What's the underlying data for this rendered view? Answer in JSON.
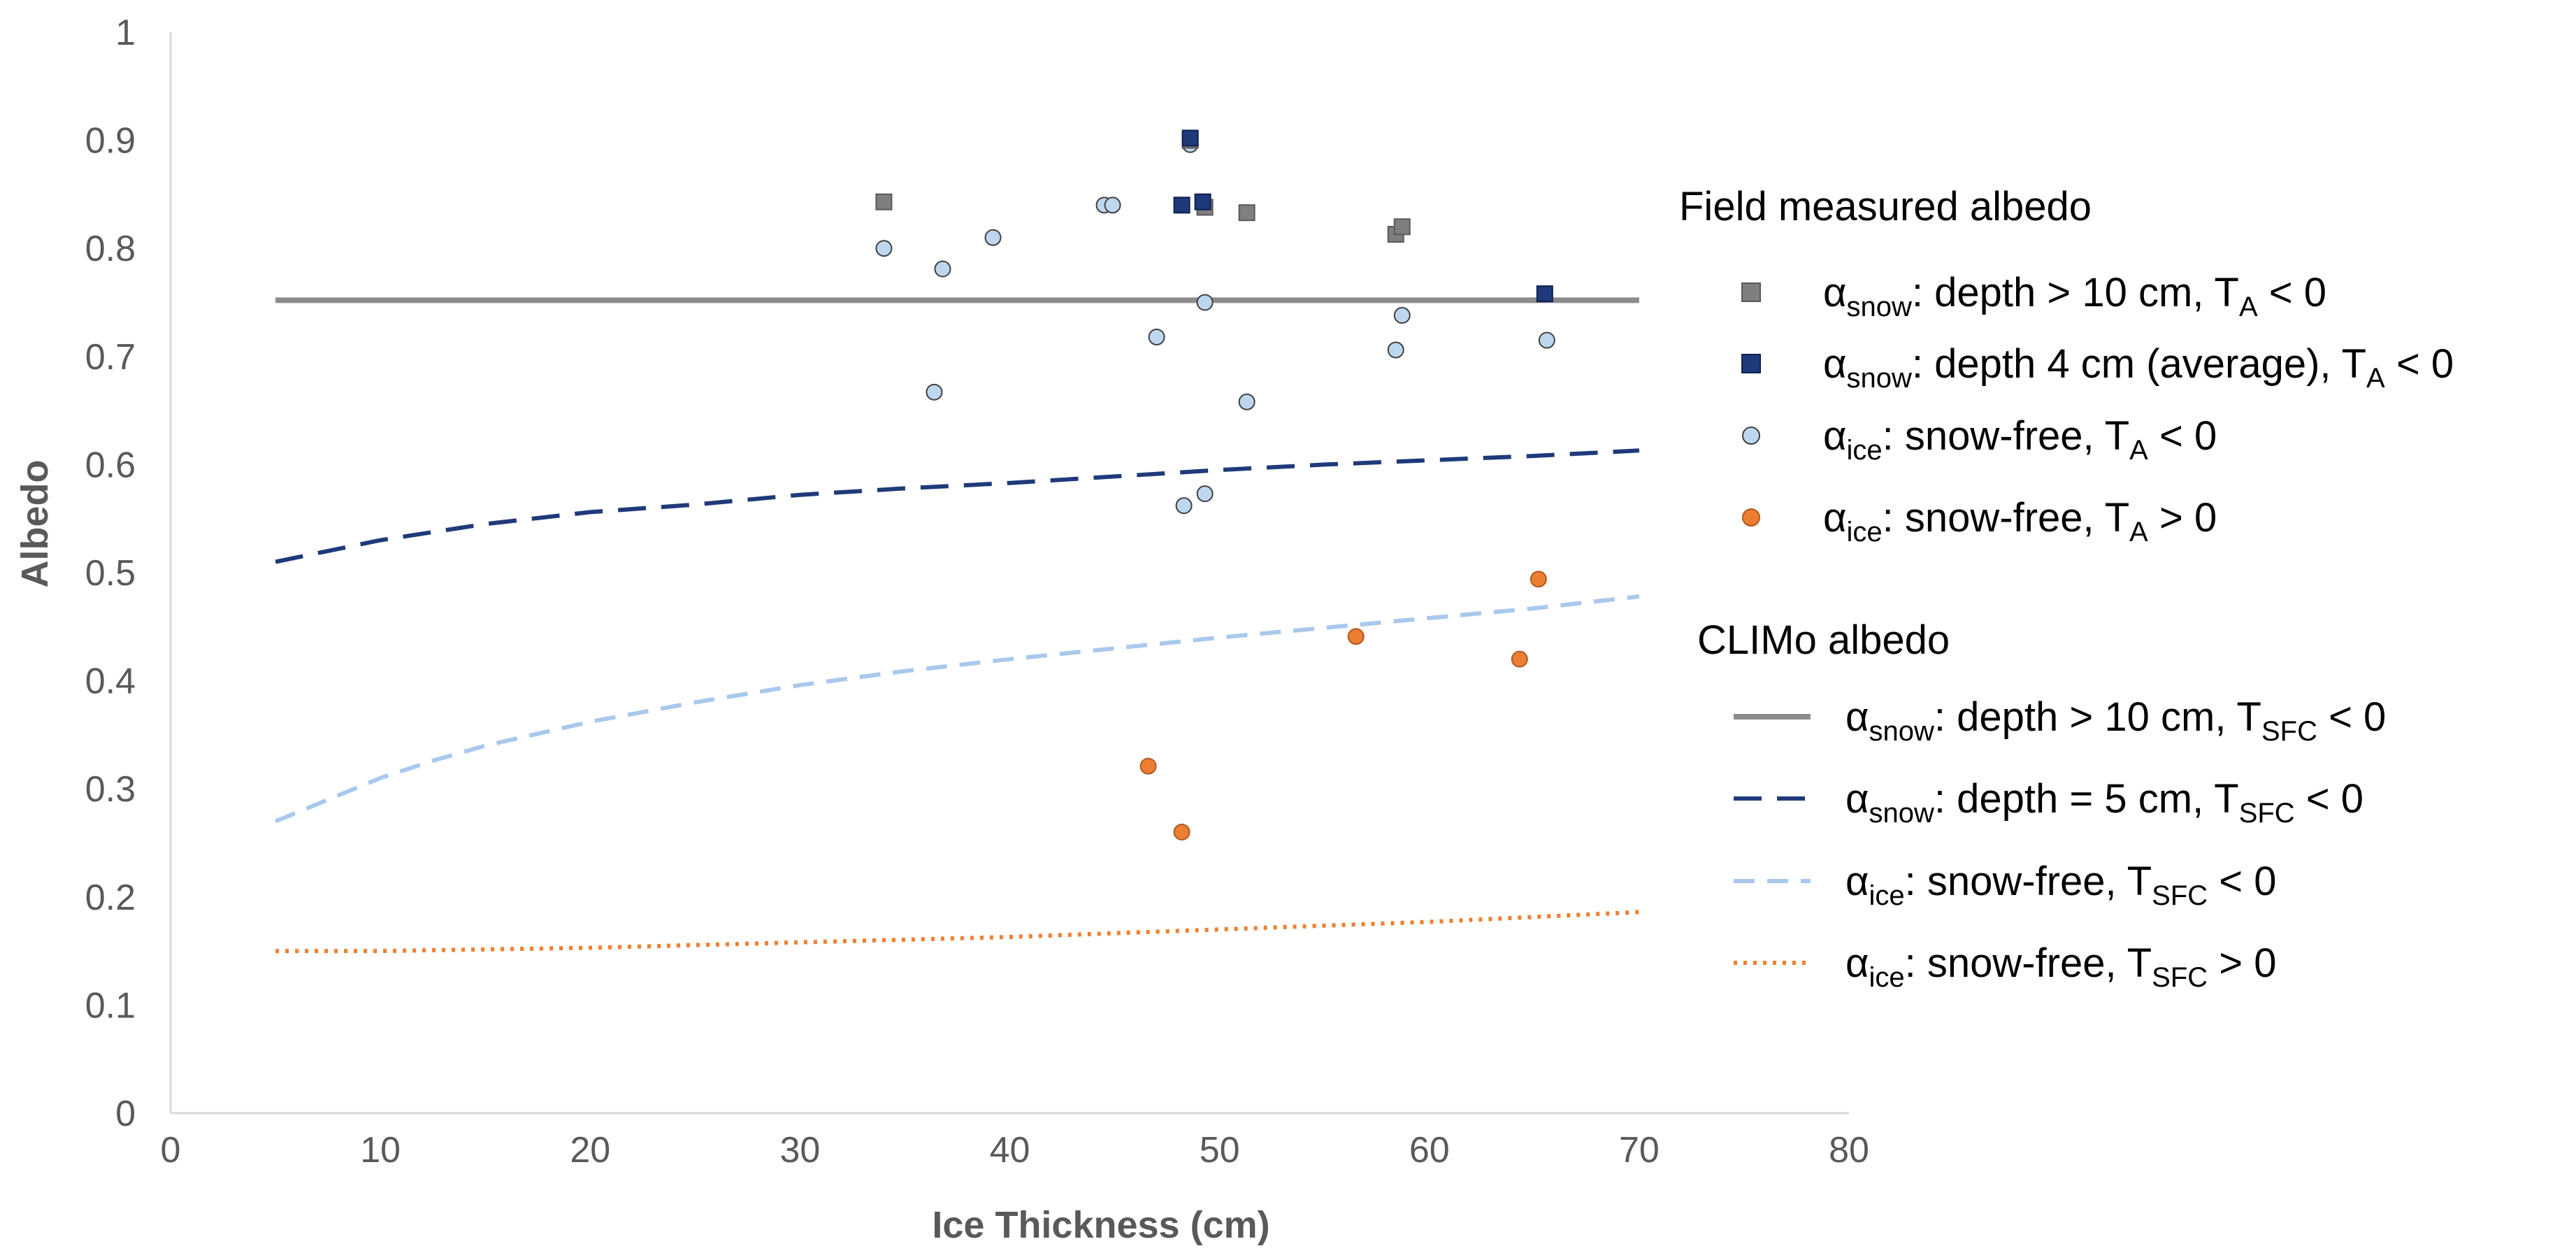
{
  "chart_data": {
    "type": "scatter",
    "xlabel": "Ice Thickness (cm)",
    "ylabel": "Albedo",
    "xlim": [
      0,
      80
    ],
    "ylim": [
      0,
      1
    ],
    "x_ticks": [
      "0",
      "10",
      "20",
      "30",
      "40",
      "50",
      "60",
      "70",
      "80"
    ],
    "y_ticks": [
      "0",
      "0.1",
      "0.2",
      "0.3",
      "0.4",
      "0.5",
      "0.6",
      "0.7",
      "0.8",
      "0.9",
      "1"
    ],
    "grid": false,
    "legend_position": "right",
    "legend_groups": [
      "Field measured albedo",
      "CLIMo albedo"
    ],
    "points": [
      {
        "name": "snow_deep",
        "color": "#7f7f7f",
        "stroke": "#595959",
        "marker": "square",
        "legend": {
          "base": "α",
          "sub1": "snow",
          "mid": ": depth > 10 cm, T",
          "sub2": "A",
          "end": " < 0"
        },
        "x": [
          34.0,
          48.6,
          49.3,
          51.3,
          58.4,
          58.7
        ],
        "y": [
          0.843,
          0.9,
          0.838,
          0.833,
          0.813,
          0.82
        ]
      },
      {
        "name": "snow_4cm",
        "color": "#1f3a7a",
        "stroke": "#0f2050",
        "marker": "square",
        "legend": {
          "base": "α",
          "sub1": "snow",
          "mid": ": depth 4 cm (average), T",
          "sub2": "A",
          "end": " < 0"
        },
        "x": [
          48.6,
          48.2,
          49.2,
          65.5
        ],
        "y": [
          0.902,
          0.84,
          0.843,
          0.758
        ]
      },
      {
        "name": "ice_cold",
        "color": "#bdd7ee",
        "stroke": "#404040",
        "marker": "circle",
        "legend": {
          "base": "α",
          "sub1": "ice",
          "mid": ": snow-free, T",
          "sub2": "A",
          "end": " < 0"
        },
        "x": [
          34.0,
          36.4,
          36.8,
          39.2,
          44.5,
          44.9,
          47.0,
          48.3,
          48.6,
          49.3,
          49.3,
          51.3,
          58.4,
          58.7,
          65.6
        ],
        "y": [
          0.8,
          0.667,
          0.781,
          0.81,
          0.84,
          0.84,
          0.718,
          0.562,
          0.896,
          0.75,
          0.573,
          0.658,
          0.706,
          0.738,
          0.715
        ]
      },
      {
        "name": "ice_warm",
        "color": "#ed7d31",
        "stroke": "#ae5a21",
        "marker": "circle",
        "legend": {
          "base": "α",
          "sub1": "ice",
          "mid": ": snow-free, T",
          "sub2": "A",
          "end": " > 0"
        },
        "x": [
          46.6,
          48.2,
          56.5,
          64.3,
          65.2
        ],
        "y": [
          0.321,
          0.26,
          0.441,
          0.42,
          0.494
        ]
      }
    ],
    "lines": [
      {
        "name": "climo_snow_deep",
        "color": "#8c8c8c",
        "style": "solid",
        "legend": {
          "base": "α",
          "sub1": "snow",
          "mid": ": depth > 10 cm, T",
          "sub2": "SFC",
          "end": " < 0"
        },
        "x": [
          5,
          70
        ],
        "y": [
          0.752,
          0.752
        ]
      },
      {
        "name": "climo_snow_5cm",
        "color": "#1f3a7a",
        "style": "longdash",
        "legend": {
          "base": "α",
          "sub1": "snow",
          "mid": ": depth = 5 cm, T",
          "sub2": "SFC",
          "end": " < 0"
        },
        "x": [
          5,
          10,
          15,
          20,
          25,
          30,
          35,
          40,
          45,
          50,
          55,
          60,
          65,
          70
        ],
        "y": [
          0.51,
          0.53,
          0.545,
          0.556,
          0.563,
          0.572,
          0.578,
          0.583,
          0.589,
          0.595,
          0.6,
          0.604,
          0.608,
          0.613
        ]
      },
      {
        "name": "climo_ice_cold",
        "color": "#a9c8ec",
        "style": "dash",
        "legend": {
          "base": "α",
          "sub1": "ice",
          "mid": ": snow-free, T",
          "sub2": "SFC",
          "end": " < 0"
        },
        "x": [
          5,
          7.5,
          10,
          12.5,
          15,
          20,
          25,
          30,
          35,
          40,
          45,
          50,
          55,
          60,
          65,
          70
        ],
        "y": [
          0.27,
          0.29,
          0.31,
          0.326,
          0.34,
          0.362,
          0.38,
          0.396,
          0.409,
          0.42,
          0.43,
          0.44,
          0.449,
          0.458,
          0.467,
          0.478
        ]
      },
      {
        "name": "climo_ice_warm",
        "color": "#f08030",
        "style": "dotted",
        "legend": {
          "base": "α",
          "sub1": "ice",
          "mid": ": snow-free, T",
          "sub2": "SFC",
          "end": " > 0"
        },
        "x": [
          5,
          10,
          20,
          30,
          40,
          50,
          60,
          70
        ],
        "y": [
          0.15,
          0.15,
          0.153,
          0.158,
          0.163,
          0.17,
          0.177,
          0.186
        ]
      }
    ]
  }
}
